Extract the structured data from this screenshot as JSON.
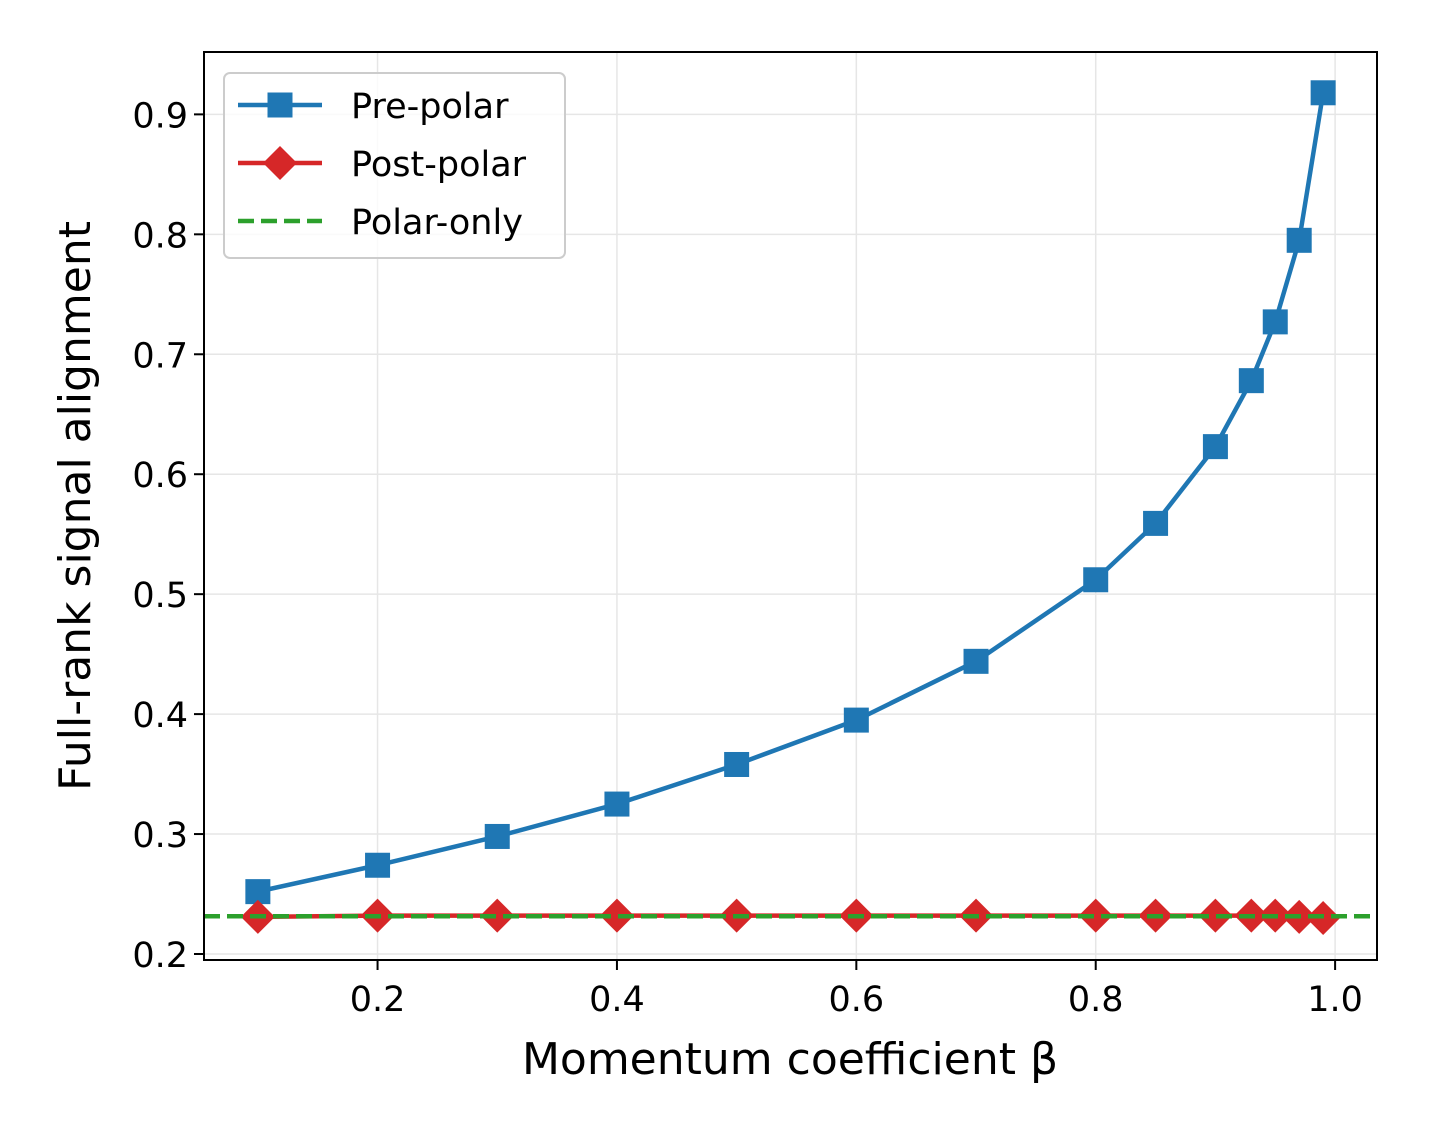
{
  "chart_data": {
    "type": "line",
    "title": "",
    "xlabel": "Momentum coefficient β",
    "ylabel": "Full-rank signal alignment",
    "xlim": [
      0.055,
      1.035
    ],
    "ylim": [
      0.195,
      0.952
    ],
    "xticks": [
      0.2,
      0.4,
      0.6,
      0.8,
      1.0
    ],
    "xtick_labels": [
      "0.2",
      "0.4",
      "0.6",
      "0.8",
      "1.0"
    ],
    "yticks": [
      0.2,
      0.3,
      0.4,
      0.5,
      0.6,
      0.7,
      0.8,
      0.9
    ],
    "ytick_labels": [
      "0.2",
      "0.3",
      "0.4",
      "0.5",
      "0.6",
      "0.7",
      "0.8",
      "0.9"
    ],
    "grid": true,
    "legend_position": "top-left",
    "x": [
      0.1,
      0.2,
      0.3,
      0.4,
      0.5,
      0.6,
      0.7,
      0.8,
      0.85,
      0.9,
      0.93,
      0.95,
      0.97,
      0.99
    ],
    "series": [
      {
        "name": "Pre-polar",
        "color": "#1f77b4",
        "marker": "square",
        "linestyle": "solid",
        "values": [
          0.252,
          0.274,
          0.298,
          0.325,
          0.358,
          0.395,
          0.444,
          0.512,
          0.559,
          0.623,
          0.678,
          0.727,
          0.795,
          0.918
        ]
      },
      {
        "name": "Post-polar",
        "color": "#d62728",
        "marker": "diamond",
        "linestyle": "solid",
        "values": [
          0.231,
          0.232,
          0.232,
          0.232,
          0.232,
          0.232,
          0.232,
          0.232,
          0.232,
          0.232,
          0.232,
          0.232,
          0.231,
          0.23
        ]
      },
      {
        "name": "Polar-only",
        "color": "#2ca02c",
        "marker": "none",
        "linestyle": "dashed",
        "constant": 0.2315
      }
    ]
  }
}
